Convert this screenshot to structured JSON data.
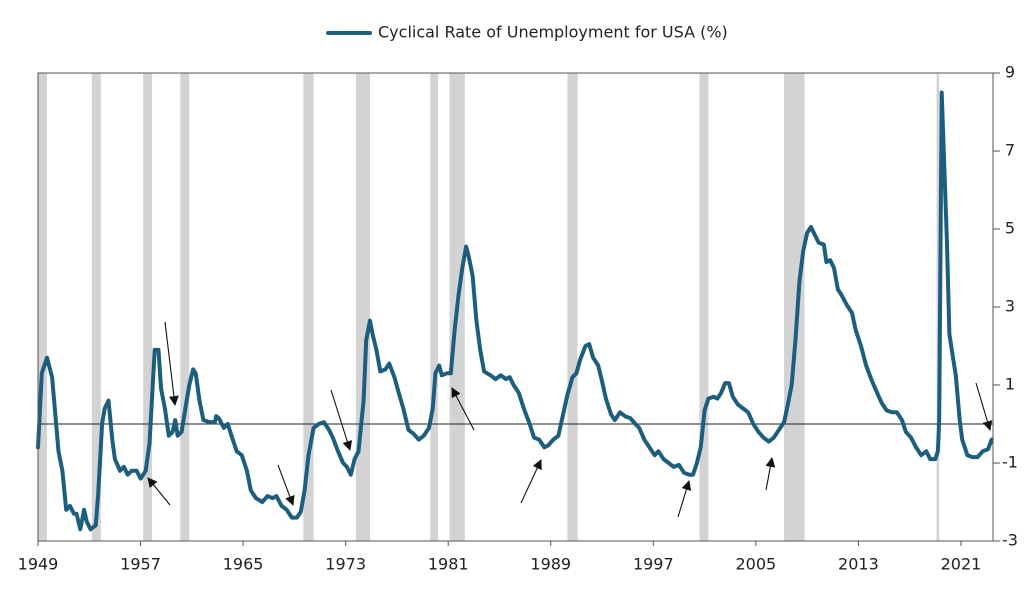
{
  "chart_data": {
    "type": "line",
    "x": [
      1949.0,
      1949.3,
      1949.7,
      1950.1,
      1950.6,
      1950.9,
      1951.2,
      1951.5,
      1951.8,
      1952.0,
      1952.3,
      1952.6,
      1952.8,
      1953.1,
      1953.5,
      1953.7,
      1954.0,
      1954.2,
      1954.5,
      1954.8,
      1955.0,
      1955.4,
      1955.7,
      1956.0,
      1956.3,
      1956.7,
      1957.0,
      1957.4,
      1957.7,
      1957.9,
      1958.1,
      1958.4,
      1958.6,
      1958.9,
      1959.2,
      1959.5,
      1959.7,
      1959.9,
      1960.2,
      1960.5,
      1960.8,
      1961.1,
      1961.3,
      1961.6,
      1961.9,
      1962.4,
      1962.8,
      1962.9,
      1963.1,
      1963.5,
      1963.8,
      1964.2,
      1964.5,
      1964.9,
      1965.3,
      1965.6,
      1966.0,
      1966.5,
      1966.9,
      1967.3,
      1967.6,
      1968.0,
      1968.4,
      1968.8,
      1969.2,
      1969.5,
      1969.8,
      1970.1,
      1970.5,
      1970.9,
      1971.3,
      1971.7,
      1972.0,
      1972.4,
      1972.8,
      1973.1,
      1973.4,
      1973.7,
      1974.0,
      1974.4,
      1974.6,
      1974.9,
      1975.1,
      1975.4,
      1975.7,
      1976.1,
      1976.4,
      1976.8,
      1977.1,
      1977.5,
      1977.9,
      1978.3,
      1978.7,
      1979.1,
      1979.5,
      1979.8,
      1980.0,
      1980.3,
      1980.5,
      1980.9,
      1981.2,
      1981.5,
      1981.8,
      1982.1,
      1982.4,
      1982.6,
      1982.9,
      1983.2,
      1983.5,
      1983.8,
      1984.3,
      1984.7,
      1985.1,
      1985.5,
      1985.8,
      1986.1,
      1986.5,
      1986.9,
      1987.3,
      1987.7,
      1988.1,
      1988.5,
      1988.8,
      1989.2,
      1989.6,
      1989.9,
      1990.3,
      1990.7,
      1991.0,
      1991.3,
      1991.7,
      1992.0,
      1992.3,
      1992.7,
      1993.0,
      1993.3,
      1993.7,
      1994.0,
      1994.4,
      1994.8,
      1995.2,
      1995.6,
      1995.9,
      1996.3,
      1996.7,
      1997.1,
      1997.4,
      1997.8,
      1998.2,
      1998.6,
      1999.0,
      1999.4,
      1999.8,
      2000.1,
      2000.4,
      2000.7,
      2001.0,
      2001.3,
      2001.7,
      2002.0,
      2002.3,
      2002.6,
      2002.9,
      2003.2,
      2003.6,
      2004.0,
      2004.4,
      2004.8,
      2005.2,
      2005.6,
      2006.0,
      2006.4,
      2006.8,
      2007.2,
      2007.4,
      2007.8,
      2008.1,
      2008.4,
      2008.7,
      2009.0,
      2009.3,
      2009.6,
      2009.9,
      2010.3,
      2010.5,
      2010.8,
      2011.1,
      2011.4,
      2011.7,
      2012.1,
      2012.5,
      2012.8,
      2013.2,
      2013.6,
      2014.0,
      2014.4,
      2014.8,
      2015.2,
      2015.6,
      2016.0,
      2016.4,
      2016.7,
      2017.1,
      2017.5,
      2017.9,
      2018.3,
      2018.6,
      2019.0,
      2019.2,
      2019.3,
      2019.5,
      2019.9,
      2020.1,
      2020.4,
      2020.6,
      2020.9,
      2021.1,
      2021.5,
      2021.9,
      2022.3,
      2022.7,
      2023.1,
      2023.4
    ],
    "series": [
      {
        "name": "Cyclical Rate of Unemployment for USA (%)",
        "color": "#1d5e7e",
        "values": [
          -0.6,
          1.3,
          1.7,
          1.2,
          -0.7,
          -1.2,
          -2.2,
          -2.1,
          -2.3,
          -2.3,
          -2.7,
          -2.2,
          -2.5,
          -2.7,
          -2.6,
          -1.8,
          0.0,
          0.4,
          0.6,
          -0.4,
          -0.9,
          -1.2,
          -1.1,
          -1.3,
          -1.2,
          -1.2,
          -1.4,
          -1.2,
          -0.5,
          0.7,
          1.9,
          1.9,
          0.9,
          0.4,
          -0.3,
          -0.2,
          0.1,
          -0.3,
          -0.2,
          0.4,
          1.0,
          1.4,
          1.3,
          0.6,
          0.1,
          0.05,
          0.05,
          0.2,
          0.15,
          -0.1,
          0,
          -0.4,
          -0.7,
          -0.8,
          -1.2,
          -1.7,
          -1.9,
          -2.0,
          -1.85,
          -1.9,
          -1.85,
          -2.1,
          -2.2,
          -2.4,
          -2.4,
          -2.25,
          -1.7,
          -0.8,
          -0.1,
          0,
          0.05,
          -0.15,
          -0.35,
          -0.7,
          -1.0,
          -1.1,
          -1.3,
          -0.9,
          -0.7,
          0.6,
          2.15,
          2.65,
          2.3,
          1.9,
          1.35,
          1.4,
          1.55,
          1.2,
          0.85,
          0.4,
          -0.15,
          -0.25,
          -0.4,
          -0.3,
          -0.1,
          0.4,
          1.3,
          1.5,
          1.25,
          1.3,
          1.3,
          2.4,
          3.3,
          4.0,
          4.55,
          4.3,
          3.8,
          2.65,
          1.9,
          1.35,
          1.25,
          1.15,
          1.25,
          1.15,
          1.2,
          1.0,
          0.8,
          0.4,
          0.05,
          -0.35,
          -0.4,
          -0.6,
          -0.55,
          -0.4,
          -0.3,
          0.15,
          0.75,
          1.2,
          1.3,
          1.65,
          2.0,
          2.05,
          1.7,
          1.5,
          1.1,
          0.65,
          0.25,
          0.1,
          0.3,
          0.2,
          0.15,
          0,
          -0.1,
          -0.4,
          -0.6,
          -0.8,
          -0.7,
          -0.9,
          -1.0,
          -1.1,
          -1.05,
          -1.25,
          -1.3,
          -1.3,
          -1.0,
          -0.6,
          0.35,
          0.65,
          0.7,
          0.65,
          0.8,
          1.05,
          1.05,
          0.7,
          0.5,
          0.4,
          0.3,
          0,
          -0.2,
          -0.35,
          -0.45,
          -0.35,
          -0.15,
          0.05,
          0.35,
          1.0,
          2.2,
          3.65,
          4.45,
          4.9,
          5.05,
          4.85,
          4.65,
          4.6,
          4.15,
          4.2,
          4.0,
          3.45,
          3.3,
          3.05,
          2.85,
          2.4,
          2.0,
          1.5,
          1.15,
          0.85,
          0.55,
          0.35,
          0.3,
          0.3,
          0.1,
          -0.2,
          -0.35,
          -0.6,
          -0.8,
          -0.7,
          -0.9,
          -0.9,
          -0.7,
          0.1,
          8.5,
          4.7,
          2.3,
          1.65,
          1.25,
          0.1,
          -0.4,
          -0.8,
          -0.85,
          -0.85,
          -0.7,
          -0.65,
          -0.4
        ]
      }
    ],
    "recessions": [
      [
        1949.0,
        1949.7
      ],
      [
        1953.2,
        1953.9
      ],
      [
        1957.2,
        1957.9
      ],
      [
        1960.1,
        1960.8
      ],
      [
        1969.7,
        1970.5
      ],
      [
        1973.8,
        1974.9
      ],
      [
        1979.6,
        1980.2
      ],
      [
        1981.1,
        1982.3
      ],
      [
        1990.3,
        1991.1
      ],
      [
        2000.6,
        2001.3
      ],
      [
        2007.2,
        2008.8
      ],
      [
        2019.1,
        2019.3
      ]
    ],
    "reference_line": 0,
    "xlim": [
      1949,
      2023.5
    ],
    "xticks": [
      1949,
      1957,
      1965,
      1973,
      1981,
      1989,
      1997,
      2005,
      2013,
      2021
    ],
    "ylim": [
      -3,
      9
    ],
    "yticks": [
      -3,
      -1,
      1,
      3,
      5,
      7,
      9
    ],
    "recession_color": "#d3d3d3",
    "legend": "top"
  }
}
